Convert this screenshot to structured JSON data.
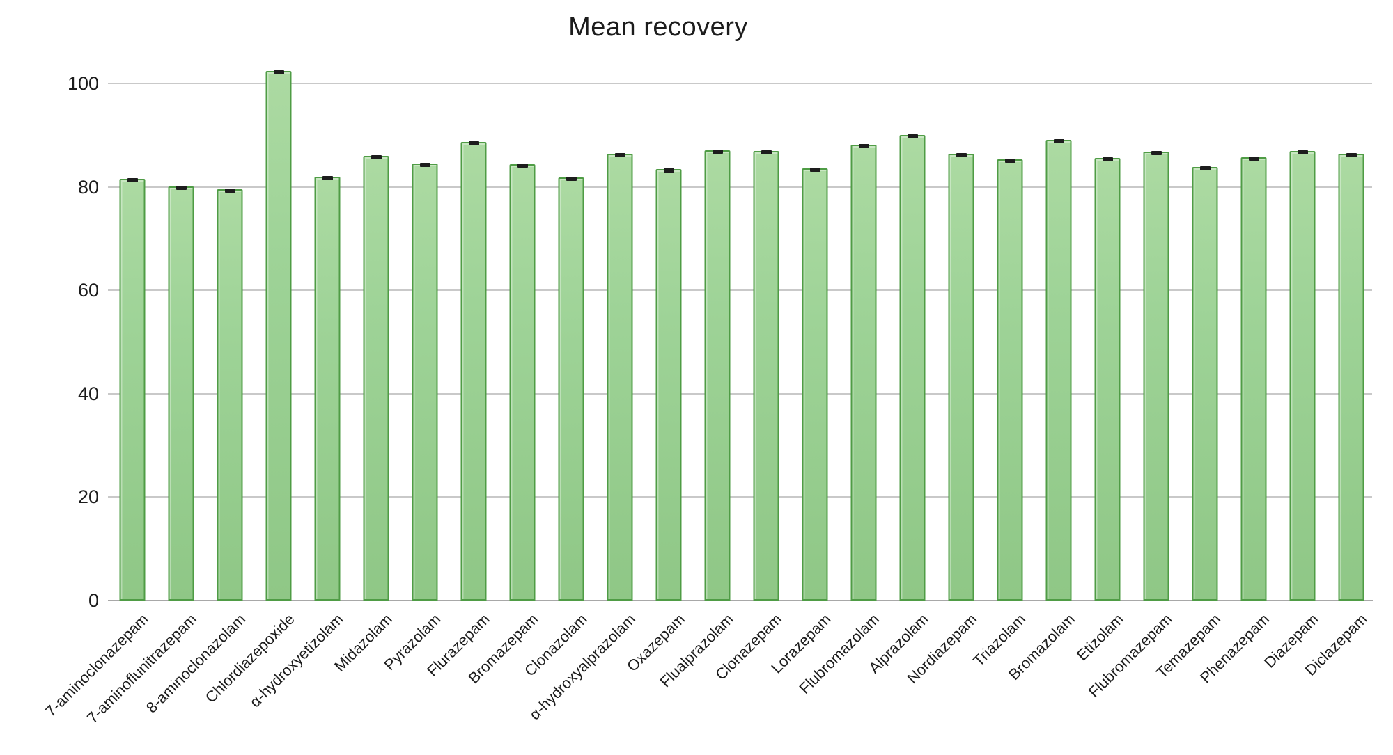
{
  "chart_data": {
    "type": "bar",
    "title": "Mean recovery",
    "xlabel": "",
    "ylabel": "",
    "categories": [
      "7-aminoclonazepam",
      "7-aminoflunitrazepam",
      "8-aminoclonazolam",
      "Chlordiazepoxide",
      "α-hydroxyetizolam",
      "Midazolam",
      "Pyrazolam",
      "Flurazepam",
      "Bromazepam",
      "Clonazolam",
      "α-hydroxyalprazolam",
      "Oxazepam",
      "Flualprazolam",
      "Clonazepam",
      "Lorazepam",
      "Flubromazolam",
      "Alprazolam",
      "Nordiazepam",
      "Triazolam",
      "Bromazolam",
      "Etizolam",
      "Flubromazepam",
      "Temazepam",
      "Phenazepam",
      "Diazepam",
      "Diclazepam"
    ],
    "values": [
      81.6,
      80.1,
      79.6,
      102.4,
      81.9,
      86.0,
      84.5,
      88.7,
      84.4,
      81.8,
      86.4,
      83.5,
      87.1,
      86.9,
      83.6,
      88.1,
      90.1,
      86.4,
      85.3,
      89.1,
      85.6,
      86.8,
      83.8,
      85.8,
      87.0,
      86.4
    ],
    "error_caps": true,
    "yticks": [
      0,
      20,
      40,
      60,
      80,
      100
    ],
    "ylim": [
      0,
      105
    ],
    "grid": true,
    "legend": "none",
    "colors": {
      "bar_fill": "#9ed397",
      "bar_fill_light": "#acdaa2",
      "bar_fill_dark": "#8fc786",
      "bar_border": "#4f9c45",
      "error_cap": "#1d1d1d",
      "gridline": "#c9c9c9",
      "axis_line": "#a8a8a8",
      "text": "#1c1c1c"
    }
  }
}
